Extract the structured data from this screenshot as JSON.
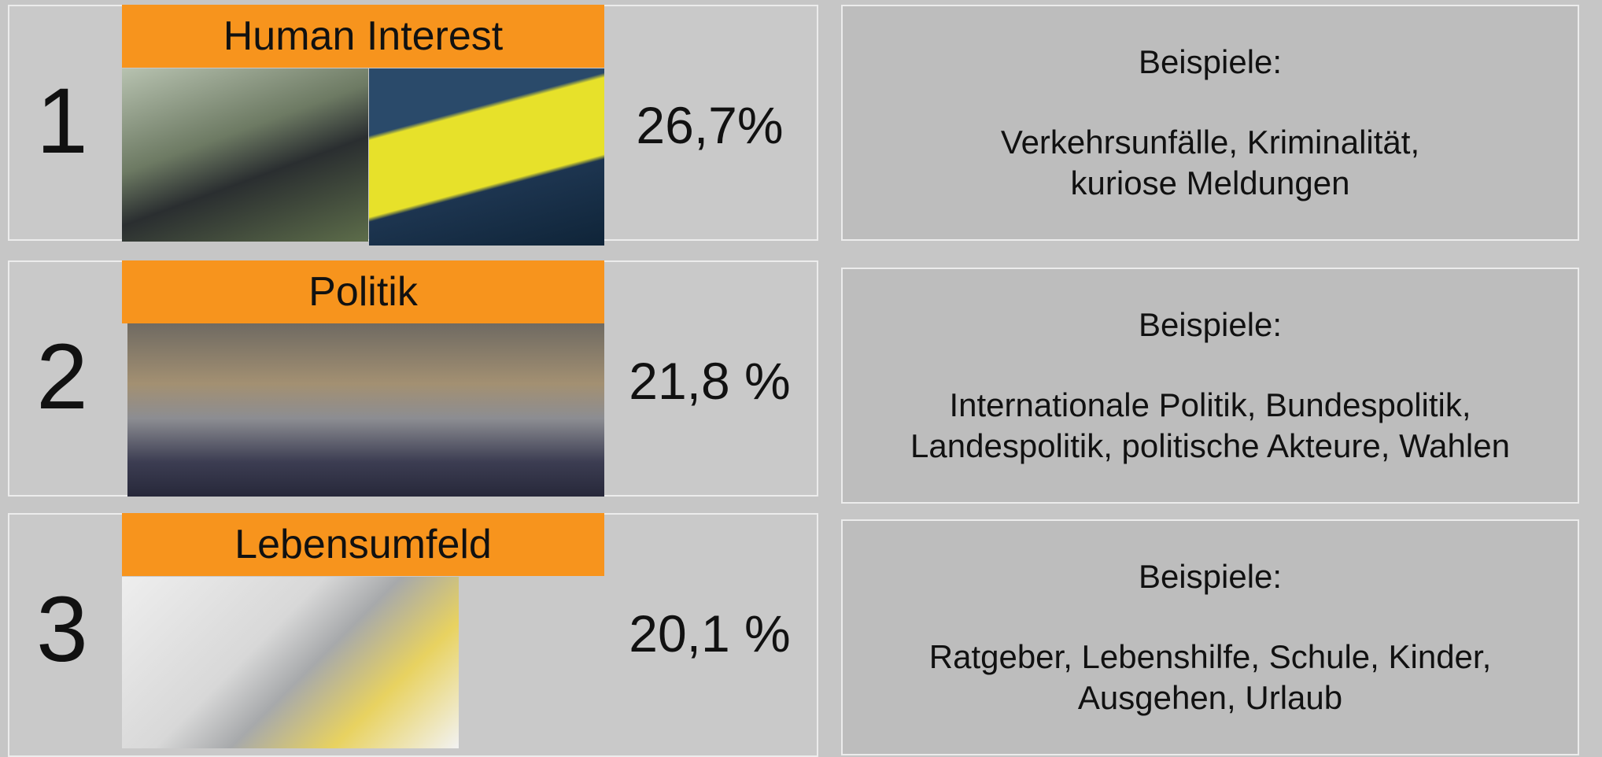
{
  "rows": [
    {
      "rank": "1",
      "title": "Human Interest",
      "share": "26,7%",
      "examples_label": "Beispiele:",
      "examples": [
        "Verkehrsunfälle, Kriminalität,",
        "kuriose Meldungen"
      ]
    },
    {
      "rank": "2",
      "title": "Politik",
      "share": "21,8 %",
      "examples_label": "Beispiele:",
      "examples": [
        "Internationale Politik, Bundespolitik,",
        "Landespolitik, politische Akteure, Wahlen"
      ]
    },
    {
      "rank": "3",
      "title": "Lebensumfeld",
      "share": "20,1 %",
      "examples_label": "Beispiele:",
      "examples": [
        "Ratgeber, Lebenshilfe, Schule, Kinder,",
        "Ausgehen, Urlaub"
      ]
    }
  ]
}
